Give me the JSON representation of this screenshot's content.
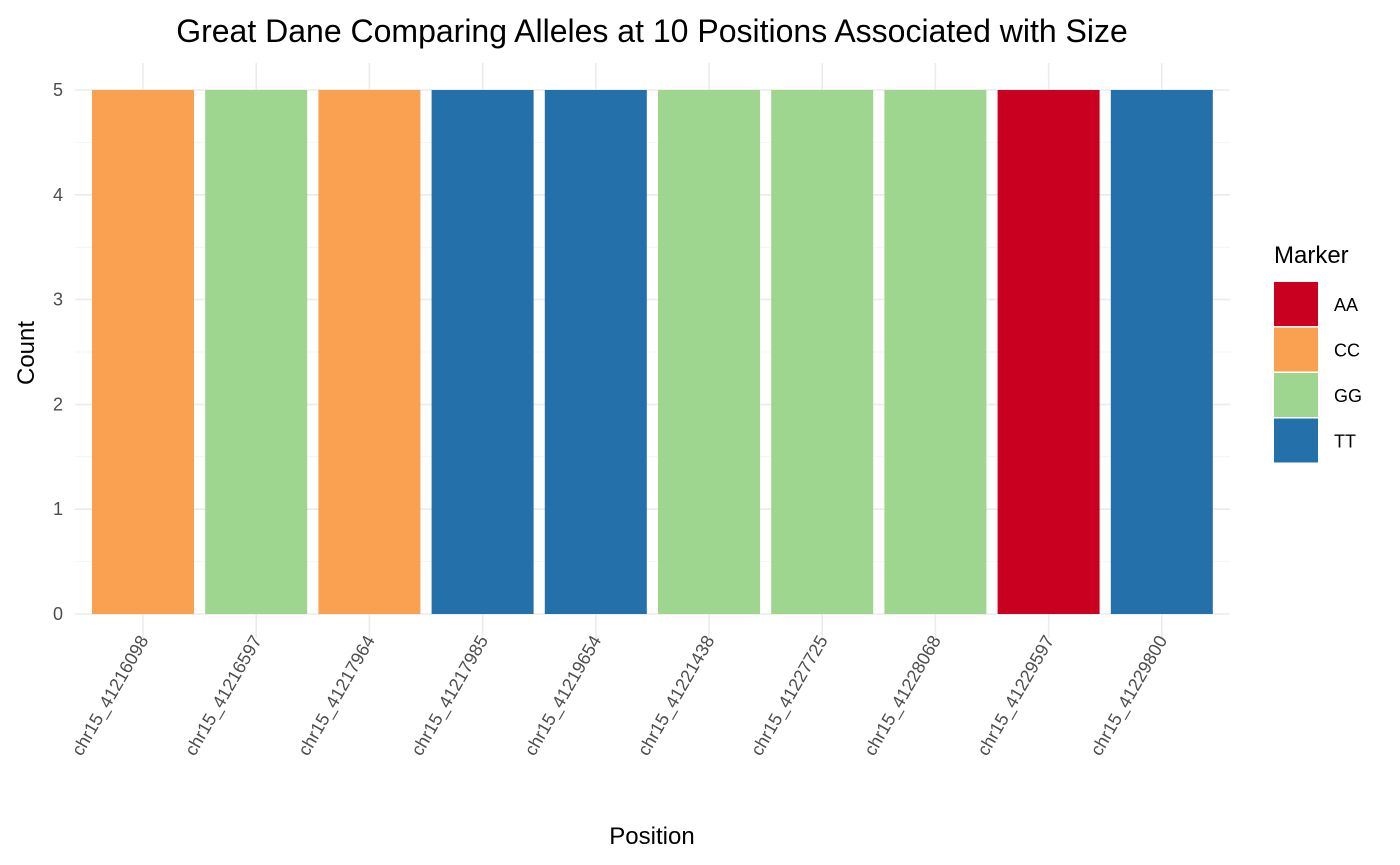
{
  "chart_data": {
    "type": "bar",
    "title": "Great Dane Comparing Alleles at 10 Positions Associated with Size",
    "xlabel": "Position",
    "ylabel": "Count",
    "ylim": [
      0,
      5
    ],
    "yticks": [
      "0",
      "1",
      "2",
      "3",
      "4",
      "5"
    ],
    "grid": true,
    "legend": {
      "title": "Marker",
      "placement": "right",
      "entries": [
        {
          "label": "AA",
          "color": "#ca0020"
        },
        {
          "label": "CC",
          "color": "#f9a051"
        },
        {
          "label": "GG",
          "color": "#9ed68f"
        },
        {
          "label": "TT",
          "color": "#2470aa"
        }
      ]
    },
    "categories": [
      "chr15_41216098",
      "chr15_41216597",
      "chr15_41217964",
      "chr15_41217985",
      "chr15_41219654",
      "chr15_41221438",
      "chr15_41227725",
      "chr15_41228068",
      "chr15_41229597",
      "chr15_41229800"
    ],
    "values": [
      5,
      5,
      5,
      5,
      5,
      5,
      5,
      5,
      5,
      5
    ],
    "markers": [
      "CC",
      "GG",
      "CC",
      "TT",
      "TT",
      "GG",
      "GG",
      "GG",
      "AA",
      "TT"
    ]
  }
}
